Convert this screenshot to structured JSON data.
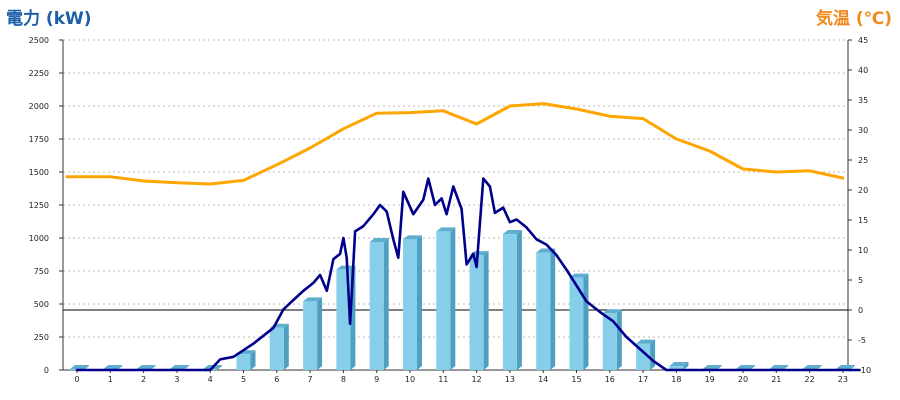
{
  "titles": {
    "left": "電力 (kW)",
    "right": "気温 (℃)"
  },
  "colors": {
    "bar_front": "#87ceeb",
    "bar_side": "#4f9fc0",
    "bar_top": "#5faed0",
    "power_line": "#00008b",
    "temp_line": "#ffa500",
    "grid": "#bbbbbb",
    "left_title": "#1a5fa8",
    "right_title": "#f08a1c"
  },
  "chart_data": {
    "type": "bar",
    "categories": [
      "0",
      "1",
      "2",
      "3",
      "4",
      "5",
      "6",
      "7",
      "8",
      "9",
      "10",
      "11",
      "12",
      "13",
      "14",
      "15",
      "16",
      "17",
      "18",
      "19",
      "20",
      "21",
      "22",
      "23"
    ],
    "y_left": {
      "min": 0,
      "max": 2500,
      "step": 250
    },
    "y_right": {
      "min": -10,
      "max": 45,
      "step": 5
    },
    "grid": true,
    "series": [
      {
        "type": "bar",
        "axis": "left",
        "values": [
          0,
          0,
          0,
          0,
          0,
          120,
          320,
          520,
          760,
          970,
          990,
          1050,
          870,
          1030,
          890,
          700,
          430,
          200,
          30,
          0,
          0,
          0,
          0,
          0
        ]
      },
      {
        "type": "line",
        "axis": "left",
        "points": [
          [
            0,
            0
          ],
          [
            4,
            0
          ],
          [
            4.3,
            80
          ],
          [
            4.7,
            100
          ],
          [
            5,
            150
          ],
          [
            5.3,
            200
          ],
          [
            5.6,
            260
          ],
          [
            5.9,
            320
          ],
          [
            6.2,
            460
          ],
          [
            6.5,
            530
          ],
          [
            6.8,
            600
          ],
          [
            7.1,
            660
          ],
          [
            7.3,
            720
          ],
          [
            7.5,
            600
          ],
          [
            7.7,
            840
          ],
          [
            7.9,
            880
          ],
          [
            8.0,
            1000
          ],
          [
            8.1,
            850
          ],
          [
            8.2,
            350
          ],
          [
            8.35,
            1050
          ],
          [
            8.6,
            1090
          ],
          [
            8.9,
            1180
          ],
          [
            9.1,
            1250
          ],
          [
            9.3,
            1200
          ],
          [
            9.5,
            990
          ],
          [
            9.65,
            850
          ],
          [
            9.8,
            1350
          ],
          [
            10.1,
            1180
          ],
          [
            10.4,
            1290
          ],
          [
            10.55,
            1450
          ],
          [
            10.75,
            1250
          ],
          [
            10.95,
            1300
          ],
          [
            11.1,
            1180
          ],
          [
            11.3,
            1390
          ],
          [
            11.55,
            1220
          ],
          [
            11.7,
            800
          ],
          [
            11.9,
            880
          ],
          [
            12.0,
            780
          ],
          [
            12.2,
            1450
          ],
          [
            12.4,
            1390
          ],
          [
            12.55,
            1190
          ],
          [
            12.8,
            1230
          ],
          [
            13.0,
            1120
          ],
          [
            13.2,
            1140
          ],
          [
            13.5,
            1080
          ],
          [
            13.8,
            990
          ],
          [
            14.1,
            950
          ],
          [
            14.4,
            870
          ],
          [
            14.7,
            760
          ],
          [
            15.0,
            640
          ],
          [
            15.3,
            520
          ],
          [
            15.7,
            440
          ],
          [
            16.1,
            370
          ],
          [
            16.5,
            250
          ],
          [
            16.9,
            160
          ],
          [
            17.3,
            70
          ],
          [
            17.7,
            0
          ],
          [
            23.5,
            0
          ]
        ]
      },
      {
        "type": "line",
        "axis": "right",
        "points": [
          [
            -0.3,
            22.2
          ],
          [
            1,
            22.2
          ],
          [
            2,
            21.5
          ],
          [
            3,
            21.2
          ],
          [
            4,
            21.0
          ],
          [
            5,
            21.6
          ],
          [
            6,
            24.2
          ],
          [
            7,
            27.0
          ],
          [
            8,
            30.2
          ],
          [
            9,
            32.8
          ],
          [
            10,
            32.9
          ],
          [
            11,
            33.2
          ],
          [
            12,
            31.0
          ],
          [
            13,
            34.0
          ],
          [
            14,
            34.4
          ],
          [
            15,
            33.5
          ],
          [
            16,
            32.3
          ],
          [
            17,
            31.9
          ],
          [
            18,
            28.5
          ],
          [
            19,
            26.5
          ],
          [
            20,
            23.5
          ],
          [
            21,
            23.0
          ],
          [
            22,
            23.2
          ],
          [
            23,
            22.0
          ]
        ]
      }
    ]
  }
}
